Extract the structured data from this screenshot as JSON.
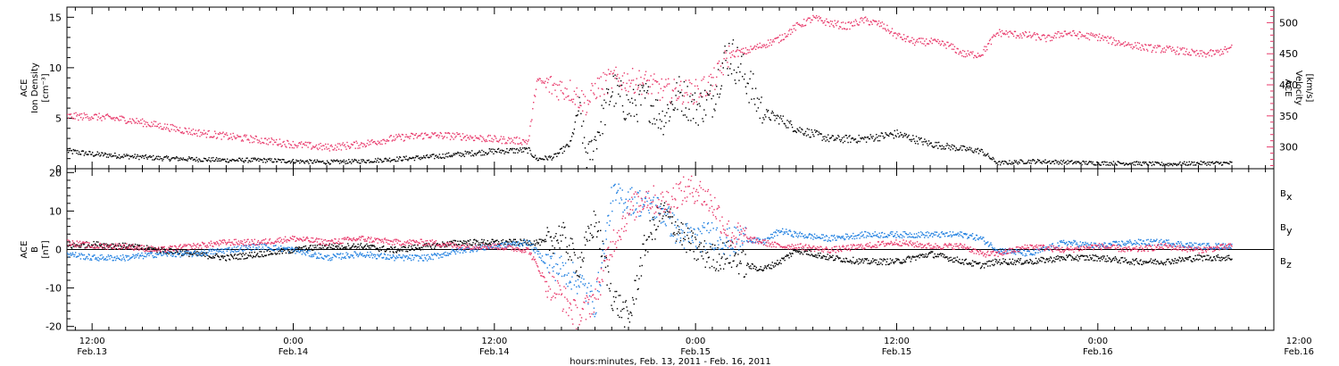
{
  "colors": {
    "density": "#000000",
    "velocity": "#e8386a",
    "bx": "#000000",
    "by": "#1f7fe0",
    "bz": "#e8386a"
  },
  "xaxis": {
    "title": "hours:minutes, Feb. 13, 2011 - Feb. 16, 2011",
    "range_hours": [
      10.5,
      82.5
    ],
    "ticks": [
      {
        "h": 12,
        "time": "12:00",
        "date": "Feb.13"
      },
      {
        "h": 24,
        "time": "0:00",
        "date": "Feb.14"
      },
      {
        "h": 36,
        "time": "12:00",
        "date": "Feb.14"
      },
      {
        "h": 48,
        "time": "0:00",
        "date": "Feb.15"
      },
      {
        "h": 60,
        "time": "12:00",
        "date": "Feb.15"
      },
      {
        "h": 72,
        "time": "0:00",
        "date": "Feb.16"
      },
      {
        "h": 84,
        "time": "12:00",
        "date": "Feb.16"
      }
    ]
  },
  "chart_data": [
    {
      "type": "scatter",
      "ylabel_lines": [
        "ACE",
        "Ion Density",
        "[cm⁻³]"
      ],
      "y2label_lines": [
        "ACE",
        "Velocity",
        "[km/s]"
      ],
      "ylim": [
        0,
        16
      ],
      "yticks": [
        0,
        5,
        10,
        15
      ],
      "y2lim": [
        265,
        525
      ],
      "y2ticks": [
        300,
        350,
        400,
        450,
        500
      ],
      "series": [
        {
          "key": "density",
          "axis": "left",
          "x": [
            10.5,
            12,
            14,
            16,
            18,
            20,
            22,
            24,
            26,
            28,
            30,
            32,
            34,
            36,
            38,
            38.5,
            39.5,
            40.5,
            41,
            41.5,
            42,
            43,
            44,
            45,
            46,
            47,
            48,
            49,
            49.5,
            50,
            51,
            52,
            53,
            54,
            56,
            58,
            60,
            62,
            64,
            65,
            66,
            68,
            70,
            72,
            74,
            76,
            78,
            80
          ],
          "y": [
            1.8,
            1.5,
            1.3,
            1.1,
            1.0,
            0.9,
            0.9,
            0.8,
            0.7,
            0.8,
            1.0,
            1.2,
            1.5,
            1.8,
            1.9,
            1.0,
            1.2,
            2.5,
            6.0,
            1.0,
            3.0,
            8.0,
            6.0,
            7.0,
            5.0,
            7.5,
            6.0,
            7.0,
            10.0,
            11.5,
            9.0,
            5.5,
            5.0,
            4.0,
            3.0,
            3.0,
            3.5,
            2.5,
            2.0,
            1.8,
            0.6,
            0.8,
            0.7,
            0.6,
            0.6,
            0.5,
            0.6,
            0.6
          ]
        },
        {
          "key": "velocity",
          "axis": "right",
          "x": [
            10.5,
            12,
            14,
            16,
            18,
            20,
            22,
            24,
            26,
            28,
            30,
            32,
            34,
            36,
            38,
            38.5,
            39.5,
            40.5,
            41,
            41.5,
            42,
            43,
            44,
            45,
            46,
            47,
            48,
            49,
            50,
            51,
            52,
            53,
            54,
            55,
            56,
            57,
            58,
            59,
            60,
            61,
            62,
            63,
            64,
            65,
            66,
            67,
            68,
            69,
            70,
            71,
            72,
            73,
            74,
            75,
            76,
            77,
            78,
            79,
            80
          ],
          "y": [
            350,
            350,
            345,
            335,
            325,
            318,
            312,
            305,
            300,
            305,
            315,
            320,
            318,
            313,
            310,
            408,
            398,
            392,
            380,
            370,
            395,
            410,
            408,
            405,
            392,
            390,
            390,
            405,
            450,
            455,
            465,
            475,
            495,
            508,
            500,
            495,
            505,
            498,
            480,
            470,
            470,
            465,
            450,
            450,
            485,
            482,
            480,
            475,
            485,
            480,
            478,
            470,
            465,
            460,
            458,
            455,
            450,
            452,
            460
          ]
        }
      ]
    },
    {
      "type": "scatter",
      "ylabel_lines": [
        "ACE",
        "B",
        "[nT]"
      ],
      "ylim": [
        -21,
        21
      ],
      "yticks": [
        -20,
        -10,
        0,
        10,
        20
      ],
      "zero_line": true,
      "series": [
        {
          "key": "bx",
          "name": "B",
          "sub": "x",
          "x": [
            10.5,
            12,
            14,
            16,
            18,
            20,
            22,
            24,
            26,
            28,
            30,
            32,
            34,
            36,
            38,
            39,
            40,
            41,
            42,
            43,
            44,
            45,
            46,
            47,
            48,
            49,
            50,
            51,
            52,
            53,
            54,
            56,
            58,
            60,
            62,
            64,
            65,
            66,
            68,
            70,
            72,
            74,
            76,
            78,
            80
          ],
          "y": [
            1,
            1.5,
            1,
            0,
            -1,
            -2,
            -1,
            0,
            1,
            1,
            0,
            1,
            2,
            2,
            2,
            2,
            4,
            -4,
            8,
            -12,
            -18,
            2,
            10,
            5,
            0,
            -2,
            -1,
            -4,
            -5,
            -3,
            0,
            -2,
            -3,
            -3,
            -1,
            -3,
            -4,
            -3,
            -3,
            -2,
            -2,
            -3,
            -3,
            -2,
            -2
          ]
        },
        {
          "key": "by",
          "name": "B",
          "sub": "y",
          "x": [
            10.5,
            12,
            14,
            16,
            18,
            20,
            22,
            24,
            26,
            28,
            30,
            32,
            34,
            36,
            38,
            39,
            40,
            41,
            42,
            43,
            44,
            45,
            46,
            47,
            48,
            49,
            50,
            51,
            52,
            53,
            54,
            56,
            58,
            60,
            62,
            64,
            65,
            66,
            68,
            70,
            72,
            74,
            76,
            78,
            80
          ],
          "y": [
            -1,
            -2,
            -2,
            -1,
            -1,
            0,
            1,
            0,
            -2,
            -1,
            -2,
            -2,
            0,
            1,
            2,
            -3,
            -5,
            -8,
            -14,
            14,
            13,
            12,
            10,
            4,
            3,
            4,
            2,
            3,
            2,
            5,
            4,
            3,
            4,
            4,
            4,
            4,
            3,
            0,
            -1,
            2,
            1,
            2,
            2,
            1,
            1
          ]
        },
        {
          "key": "bz",
          "name": "B",
          "sub": "z",
          "x": [
            10.5,
            12,
            14,
            16,
            18,
            20,
            22,
            24,
            26,
            28,
            30,
            32,
            34,
            36,
            38,
            39,
            40,
            41,
            42,
            43,
            44,
            45,
            46,
            47,
            48,
            49,
            50,
            51,
            52,
            53,
            54,
            56,
            58,
            60,
            62,
            64,
            65,
            66,
            68,
            70,
            72,
            74,
            76,
            78,
            80
          ],
          "y": [
            2,
            1,
            1,
            0,
            1,
            2,
            2,
            3,
            2,
            3,
            2,
            2,
            1,
            1,
            0,
            -8,
            -12,
            -18,
            -12,
            2,
            10,
            14,
            12,
            15,
            16,
            12,
            4,
            3,
            2,
            1,
            1,
            0,
            1,
            2,
            1,
            1,
            -1,
            -1,
            1,
            0,
            1,
            0,
            1,
            0,
            1
          ]
        }
      ]
    }
  ]
}
